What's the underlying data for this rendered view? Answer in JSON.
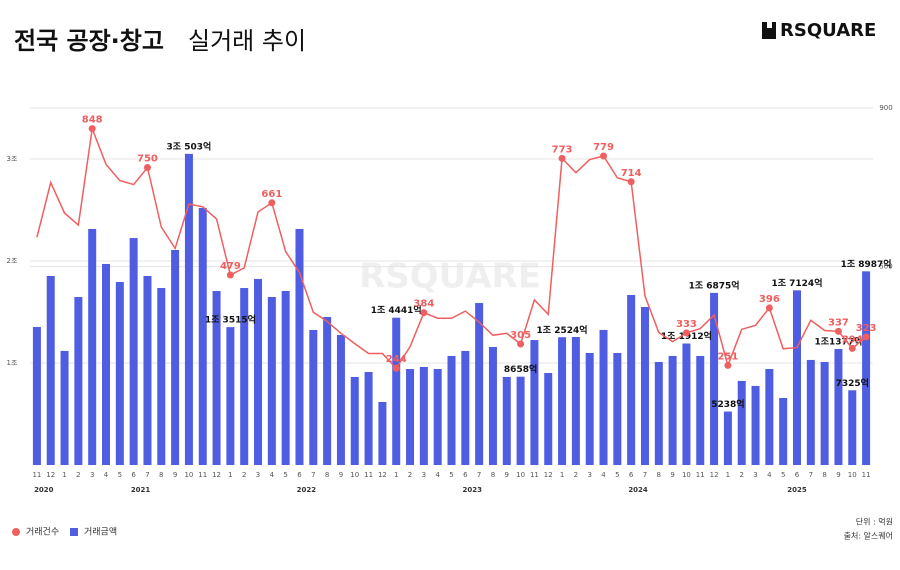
{
  "chart_data": {
    "type": "combo",
    "title_bold": "전국 공장·창고",
    "title_rest": "실거래 추이",
    "brand": "RSQUARE",
    "unit_note": "단위 : 억원",
    "source_note": "출처: 알스퀘어",
    "categories": [
      "11",
      "12",
      "1",
      "2",
      "3",
      "4",
      "5",
      "6",
      "7",
      "8",
      "9",
      "10",
      "11",
      "12",
      "1",
      "2",
      "3",
      "4",
      "5",
      "6",
      "7",
      "8",
      "9",
      "10",
      "11",
      "12",
      "1",
      "2",
      "3",
      "4",
      "5",
      "6",
      "7",
      "8",
      "9",
      "10",
      "11",
      "12",
      "1",
      "2",
      "3",
      "4",
      "5",
      "6",
      "7",
      "8",
      "9",
      "10",
      "11",
      "12",
      "1",
      "2",
      "3",
      "4",
      "5",
      "6",
      "7",
      "8",
      "9",
      "10",
      "11"
    ],
    "x_groups": [
      "2020",
      "2021",
      "2022",
      "2023",
      "2024",
      "2025"
    ],
    "ylim": [
      0,
      35000
    ],
    "yticks": [
      {
        "value": 10000,
        "label": "1조"
      },
      {
        "value": 20000,
        "label": "2조"
      },
      {
        "value": 30000,
        "label": "3조"
      }
    ],
    "y2lim": [
      0,
      900
    ],
    "y2ticks": [
      500,
      900
    ],
    "grid": true,
    "series": [
      {
        "name": "거래건수",
        "type": "line",
        "axis": "y2",
        "color": "#ef5f5f",
        "values": [
          574,
          712,
          635,
          605,
          848,
          758,
          717,
          707,
          750,
          600,
          546,
          658,
          651,
          620,
          479,
          497,
          638,
          661,
          538,
          485,
          385,
          362,
          332,
          306,
          281,
          281,
          244,
          298,
          384,
          370,
          370,
          388,
          360,
          327,
          332,
          305,
          416,
          380,
          773,
          737,
          770,
          779,
          724,
          714,
          426,
          334,
          311,
          333,
          344,
          378,
          251,
          342,
          352,
          396,
          293,
          296,
          365,
          339,
          337,
          294,
          323
        ],
        "value_labels": [
          null,
          null,
          null,
          null,
          "848",
          null,
          null,
          null,
          "750",
          null,
          null,
          null,
          null,
          null,
          "479",
          null,
          null,
          "661",
          null,
          null,
          null,
          null,
          null,
          null,
          null,
          null,
          "244",
          null,
          "384",
          null,
          null,
          null,
          null,
          null,
          null,
          "305",
          null,
          null,
          "773",
          null,
          null,
          "779",
          null,
          "714",
          null,
          null,
          null,
          "333",
          null,
          null,
          "251",
          null,
          null,
          "396",
          null,
          null,
          null,
          null,
          "337",
          "294",
          "323"
        ]
      },
      {
        "name": "거래금액",
        "type": "bar",
        "color": "#4f5de2",
        "values": [
          13530,
          18530,
          11180,
          16470,
          23140,
          19710,
          17940,
          22250,
          18530,
          17350,
          21080,
          30503,
          25200,
          17060,
          13515,
          17350,
          18240,
          16470,
          17060,
          23140,
          13240,
          14510,
          12750,
          8630,
          9120,
          6180,
          14441,
          9410,
          9610,
          9410,
          10690,
          11180,
          15880,
          11570,
          8630,
          8658,
          12250,
          9020,
          12524,
          12550,
          10980,
          13240,
          10980,
          16670,
          15490,
          10100,
          10690,
          11912,
          10690,
          16875,
          5238,
          8240,
          7750,
          9410,
          6570,
          17124,
          10300,
          10100,
          11377,
          7325,
          18987
        ],
        "value_labels": [
          null,
          null,
          null,
          null,
          null,
          null,
          null,
          null,
          null,
          null,
          null,
          "3조 503억",
          null,
          null,
          "1조 3515억",
          null,
          null,
          null,
          null,
          null,
          null,
          null,
          null,
          null,
          null,
          null,
          "1조 4441억",
          null,
          null,
          null,
          null,
          null,
          null,
          null,
          null,
          "8658억",
          null,
          null,
          "1조 2524억",
          null,
          null,
          null,
          null,
          null,
          null,
          null,
          null,
          "1조 1912억",
          null,
          "1조 6875억",
          "5238억",
          null,
          null,
          null,
          null,
          "1조 7124억",
          null,
          null,
          "1조1377억",
          "7325억",
          "1조 8987억"
        ]
      }
    ]
  }
}
